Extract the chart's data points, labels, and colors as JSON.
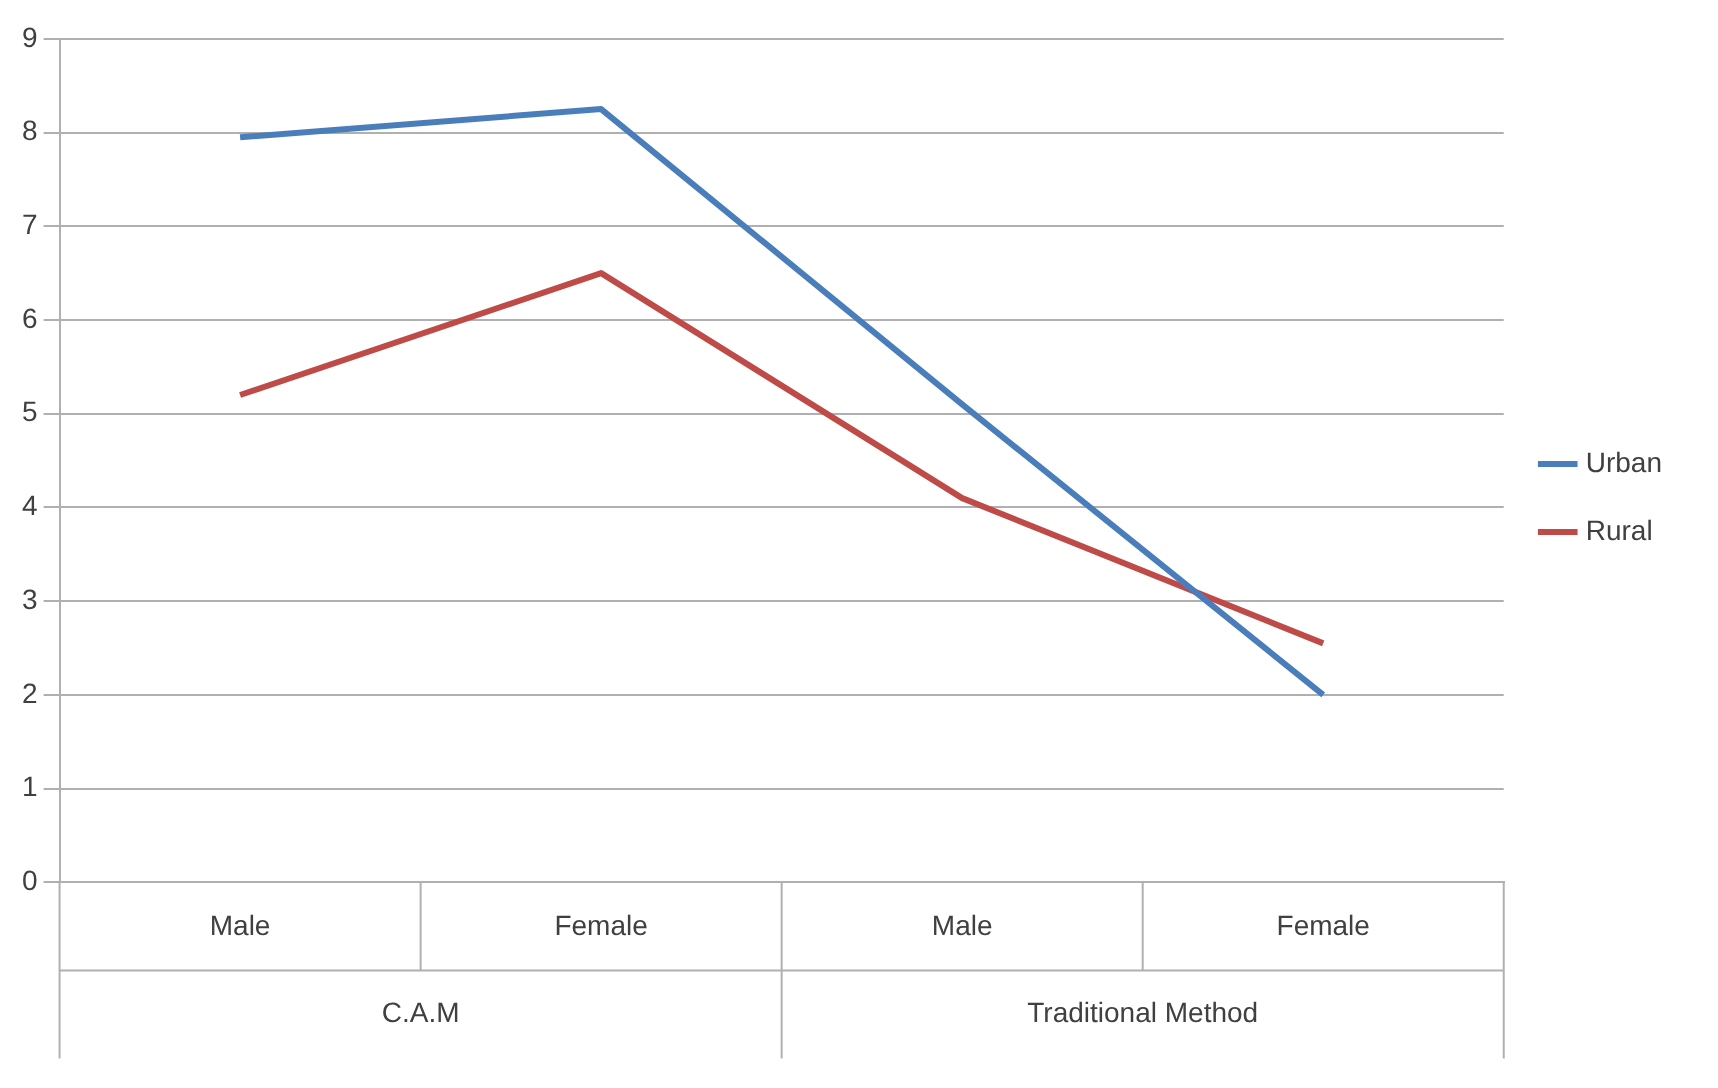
{
  "chart_data": {
    "type": "line",
    "categories": [
      "Male",
      "Female",
      "Male",
      "Female"
    ],
    "series": [
      {
        "name": "Urban",
        "color": "#4a7ebb",
        "values": [
          7.95,
          8.25,
          5.1,
          2.0
        ]
      },
      {
        "name": "Rural",
        "color": "#be4b48",
        "values": [
          5.2,
          6.5,
          4.1,
          2.55
        ]
      }
    ],
    "ylim": [
      0,
      9
    ],
    "yticks": [
      0,
      1,
      2,
      3,
      4,
      5,
      6,
      7,
      8,
      9
    ],
    "grid": "y",
    "legend": "right",
    "marker": "none",
    "line_style": "solid",
    "annotations": [
      "C.A.M",
      "Traditional Method"
    ]
  }
}
